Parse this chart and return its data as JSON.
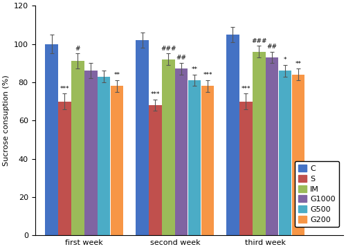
{
  "groups": [
    "first week",
    "second week",
    "third week"
  ],
  "series": [
    "C",
    "S",
    "IM",
    "G1000",
    "G500",
    "G200"
  ],
  "colors": [
    "#4472C4",
    "#C0504D",
    "#9BBB59",
    "#8064A2",
    "#4BACC6",
    "#F79646"
  ],
  "values": [
    [
      100,
      70,
      91,
      86,
      83,
      78
    ],
    [
      102,
      68,
      92,
      87,
      81,
      78
    ],
    [
      105,
      70,
      96,
      93,
      86,
      84
    ]
  ],
  "errors": [
    [
      5,
      4,
      4,
      4,
      3,
      3
    ],
    [
      4,
      3,
      3,
      3,
      3,
      3
    ],
    [
      4,
      4,
      3,
      3,
      3,
      3
    ]
  ],
  "annotations_above_bar": [
    [
      "",
      "***",
      "#",
      "",
      "",
      "**"
    ],
    [
      "",
      "***",
      "###",
      "##",
      "**",
      "***"
    ],
    [
      "",
      "***",
      "###",
      "##",
      "*",
      "**"
    ]
  ],
  "ylabel": "Sucrose consuption (%)",
  "ylim": [
    0,
    120
  ],
  "yticks": [
    0,
    20,
    40,
    60,
    80,
    100,
    120
  ],
  "bar_width": 0.13,
  "legend_labels": [
    "C",
    "S",
    "IM",
    "G1000",
    "G500",
    "G200"
  ]
}
